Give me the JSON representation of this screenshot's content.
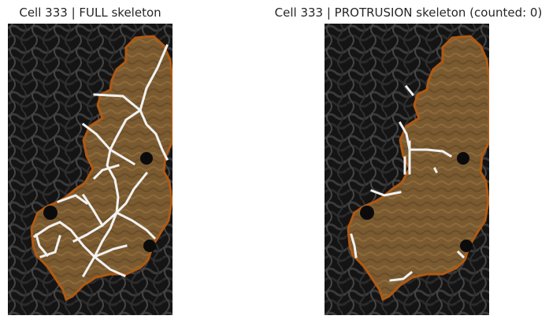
{
  "panels": [
    {
      "title": "Cell 333 | FULL skeleton",
      "kind": "full"
    },
    {
      "title": "Cell 333 | PROTRUSION skeleton (counted: 0)",
      "kind": "protrusion"
    }
  ],
  "colors": {
    "background": "#0d0d0d",
    "cell_fill": "#7a5a30",
    "cell_outline": "#b05a14",
    "skeleton": "#f2f2f2"
  }
}
